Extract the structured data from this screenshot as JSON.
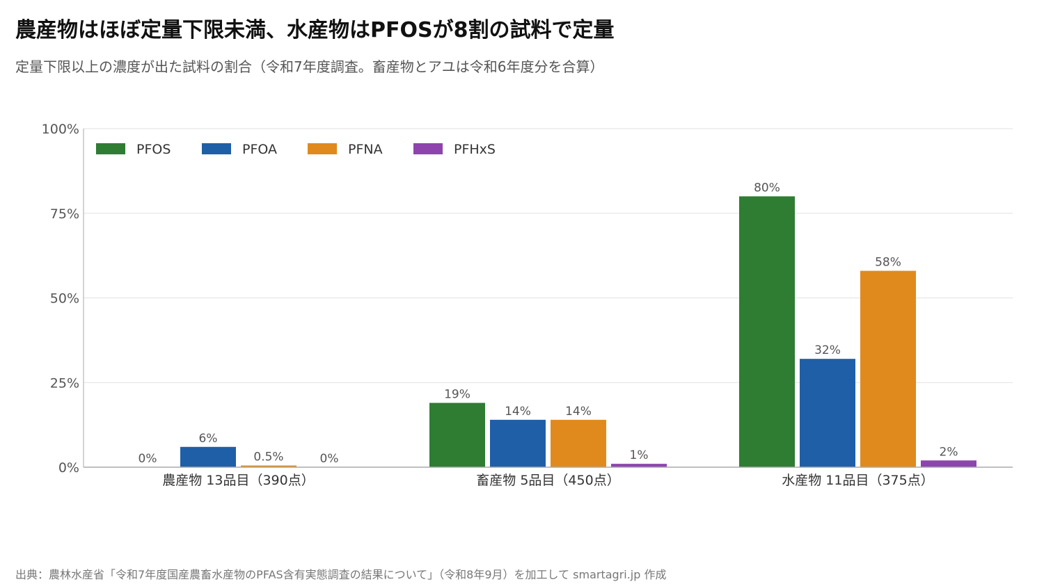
{
  "title": "農産物はほぼ定量下限未満、水産物はPFOSが8割の試料で定量",
  "subtitle": "定量下限以上の濃度が出た試料の割合（令和7年度調査。畜産物とアユは令和6年度分を合算）",
  "source": "出典：農林水産省「令和7年度国産農畜水産物のPFAS含有実態調査の結果について」（令和8年9月）を加工して smartagri.jp 作成",
  "chart_data": {
    "type": "bar",
    "categories": [
      "農産物 13品目（390点）",
      "畜産物 5品目（450点）",
      "水産物 11品目（375点）"
    ],
    "series": [
      {
        "name": "PFOS",
        "color": "#2e7d32",
        "values": [
          0,
          19,
          80
        ],
        "labels": [
          "0%",
          "19%",
          "80%"
        ]
      },
      {
        "name": "PFOA",
        "color": "#1f5fa8",
        "values": [
          6,
          14,
          32
        ],
        "labels": [
          "6%",
          "14%",
          "32%"
        ]
      },
      {
        "name": "PFNA",
        "color": "#e08a1e",
        "values": [
          0.5,
          14,
          58
        ],
        "labels": [
          "0.5%",
          "14%",
          "58%"
        ]
      },
      {
        "name": "PFHxS",
        "color": "#8e44ad",
        "values": [
          0,
          1,
          2
        ],
        "labels": [
          "0%",
          "1%",
          "2%"
        ]
      }
    ],
    "yticks": [
      "0%",
      "25%",
      "50%",
      "75%",
      "100%"
    ],
    "ylim": [
      0,
      100
    ],
    "grid": true,
    "legend_position": "top-left"
  }
}
